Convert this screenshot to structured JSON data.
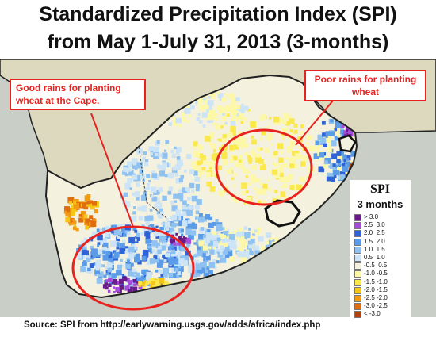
{
  "title": {
    "line1": "Standardized Precipitation Index (SPI)",
    "line2": "from May 1-July 31, 2013 (3-months)"
  },
  "callouts": {
    "good": "Good rains for planting wheat at the Cape.",
    "poor": "Poor rains for planting wheat"
  },
  "legend": {
    "title": "SPI",
    "subtitle": "3 months",
    "items": [
      {
        "label": "> 3.0",
        "color": "#6a1b8a"
      },
      {
        "label": "2.5  3.0",
        "color": "#a64ad9"
      },
      {
        "label": "2.0  2.5",
        "color": "#2f63d6"
      },
      {
        "label": "1.5  2.0",
        "color": "#5b9ce8"
      },
      {
        "label": "1.0  1.5",
        "color": "#8fc2f0"
      },
      {
        "label": "0.5  1.0",
        "color": "#cde4f7"
      },
      {
        "label": "-0.5  0.5",
        "color": "#f4f1de"
      },
      {
        "label": "-1.0 -0.5",
        "color": "#fdf7a8"
      },
      {
        "label": "-1.5 -1.0",
        "color": "#fbe84a"
      },
      {
        "label": "-2.0 -1.5",
        "color": "#f5c518"
      },
      {
        "label": "-2.5 -2.0",
        "color": "#f29a12"
      },
      {
        "label": "-3.0 -2.5",
        "color": "#e06d10"
      },
      {
        "label": "< -3.0",
        "color": "#b0420c"
      }
    ]
  },
  "map_colors": {
    "ocean": "#c9cfc7",
    "neighbor": "#dcd9bf",
    "land_base": "#f4f1de",
    "border": "#222222",
    "ring": "#e8231f"
  },
  "source": "Source: SPI from http://earlywarning.usgs.gov/adds/africa/index.php"
}
